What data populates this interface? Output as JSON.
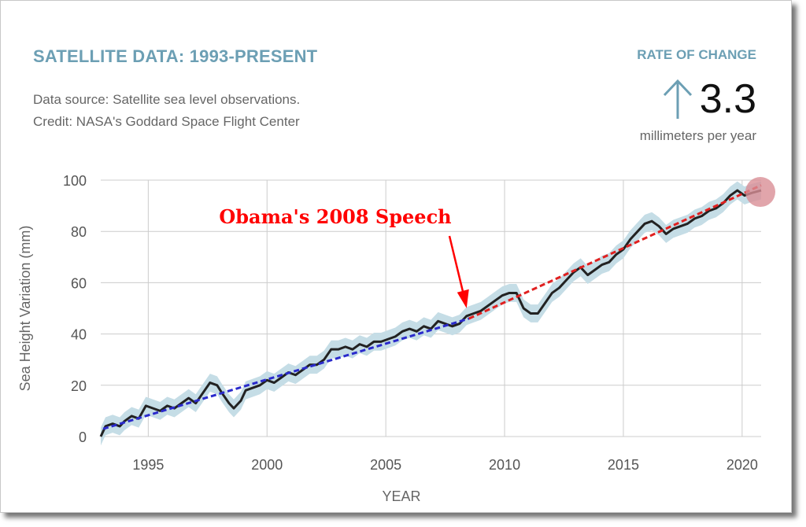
{
  "header": {
    "title": "SATELLITE DATA: 1993-PRESENT",
    "source_line1": "Data source: Satellite sea level observations.",
    "source_line2": "Credit: NASA's Goddard Space Flight Center"
  },
  "rate": {
    "label": "RATE OF CHANGE",
    "value": "3.3",
    "unit": "millimeters per year",
    "arrow_icon": "up-arrow-icon"
  },
  "chart_data": {
    "type": "line",
    "xlabel": "YEAR",
    "ylabel": "Sea Height Variation (mm)",
    "xlim": [
      1993,
      2020.8
    ],
    "ylim": [
      0,
      100
    ],
    "x_ticks": [
      1995,
      2000,
      2005,
      2010,
      2015,
      2020
    ],
    "y_ticks": [
      0,
      20,
      40,
      60,
      80,
      100
    ],
    "grid": true,
    "series": [
      {
        "color": "#222222",
        "band_color": "#c5dde6",
        "points": [
          [
            1993.0,
            0
          ],
          [
            1993.2,
            4
          ],
          [
            1993.5,
            5
          ],
          [
            1993.8,
            4
          ],
          [
            1994.0,
            6
          ],
          [
            1994.3,
            8
          ],
          [
            1994.6,
            7
          ],
          [
            1994.9,
            12
          ],
          [
            1995.2,
            11
          ],
          [
            1995.5,
            10
          ],
          [
            1995.8,
            12
          ],
          [
            1996.1,
            11
          ],
          [
            1996.4,
            13
          ],
          [
            1996.7,
            15
          ],
          [
            1997.0,
            13
          ],
          [
            1997.3,
            17
          ],
          [
            1997.6,
            21
          ],
          [
            1997.9,
            20
          ],
          [
            1998.1,
            17
          ],
          [
            1998.4,
            13
          ],
          [
            1998.6,
            11
          ],
          [
            1998.9,
            14
          ],
          [
            1999.1,
            18
          ],
          [
            1999.4,
            19
          ],
          [
            1999.7,
            20
          ],
          [
            2000.0,
            22
          ],
          [
            2000.3,
            21
          ],
          [
            2000.6,
            23
          ],
          [
            2000.9,
            25
          ],
          [
            2001.2,
            24
          ],
          [
            2001.5,
            26
          ],
          [
            2001.8,
            28
          ],
          [
            2002.1,
            28
          ],
          [
            2002.4,
            30
          ],
          [
            2002.7,
            34
          ],
          [
            2003.0,
            34
          ],
          [
            2003.3,
            35
          ],
          [
            2003.6,
            34
          ],
          [
            2003.9,
            36
          ],
          [
            2004.2,
            35
          ],
          [
            2004.5,
            37
          ],
          [
            2004.8,
            37
          ],
          [
            2005.1,
            38
          ],
          [
            2005.4,
            39
          ],
          [
            2005.7,
            41
          ],
          [
            2006.0,
            42
          ],
          [
            2006.3,
            41
          ],
          [
            2006.6,
            43
          ],
          [
            2006.9,
            42
          ],
          [
            2007.2,
            45
          ],
          [
            2007.5,
            44
          ],
          [
            2007.8,
            43
          ],
          [
            2008.1,
            44
          ],
          [
            2008.4,
            47
          ],
          [
            2008.7,
            48
          ],
          [
            2009.0,
            49
          ],
          [
            2009.3,
            51
          ],
          [
            2009.6,
            53
          ],
          [
            2009.9,
            55
          ],
          [
            2010.2,
            56
          ],
          [
            2010.5,
            56
          ],
          [
            2010.8,
            50
          ],
          [
            2011.1,
            48
          ],
          [
            2011.4,
            48
          ],
          [
            2011.7,
            52
          ],
          [
            2012.0,
            56
          ],
          [
            2012.3,
            58
          ],
          [
            2012.6,
            61
          ],
          [
            2012.9,
            64
          ],
          [
            2013.2,
            66
          ],
          [
            2013.5,
            63
          ],
          [
            2013.8,
            65
          ],
          [
            2014.1,
            67
          ],
          [
            2014.4,
            68
          ],
          [
            2014.7,
            71
          ],
          [
            2015.0,
            73
          ],
          [
            2015.3,
            77
          ],
          [
            2015.6,
            80
          ],
          [
            2015.9,
            83
          ],
          [
            2016.2,
            84
          ],
          [
            2016.5,
            82
          ],
          [
            2016.8,
            79
          ],
          [
            2017.1,
            81
          ],
          [
            2017.4,
            82
          ],
          [
            2017.7,
            83
          ],
          [
            2018.0,
            85
          ],
          [
            2018.3,
            86
          ],
          [
            2018.6,
            88
          ],
          [
            2018.9,
            89
          ],
          [
            2019.2,
            91
          ],
          [
            2019.5,
            94
          ],
          [
            2019.8,
            96
          ],
          [
            2020.1,
            94
          ],
          [
            2020.4,
            95
          ],
          [
            2020.8,
            96
          ]
        ]
      }
    ],
    "trend_lines": [
      {
        "color": "#2a2acc",
        "from": [
          1993.1,
          3
        ],
        "to": [
          2008.5,
          46
        ]
      },
      {
        "color": "#e02020",
        "from": [
          2008.5,
          46
        ],
        "to": [
          2020.8,
          98
        ]
      }
    ],
    "end_marker": {
      "x": 2020.8,
      "y": 96,
      "color": "#d98e96"
    },
    "annotation": {
      "text": "Obama's 2008 Speech",
      "color": "#ff0000",
      "arrow_to": [
        2008.4,
        47
      ]
    }
  }
}
